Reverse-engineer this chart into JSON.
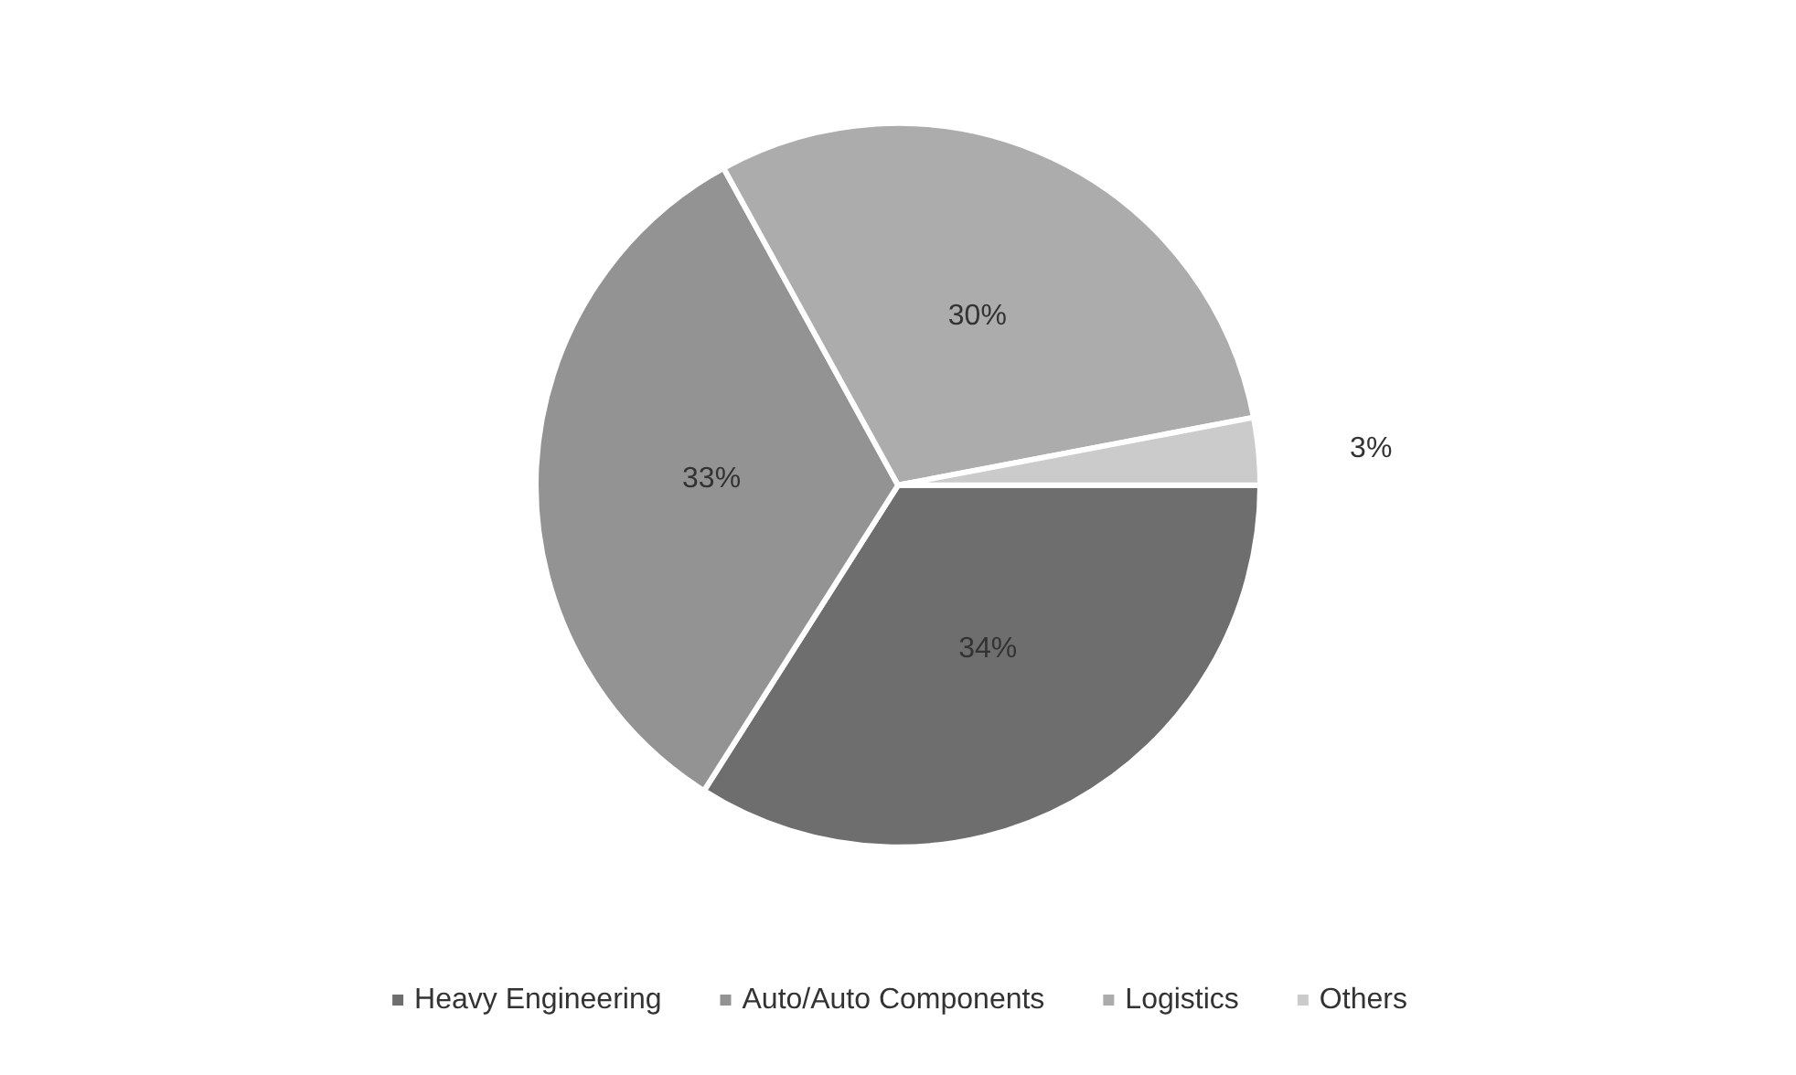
{
  "chart_data": {
    "type": "pie",
    "categories": [
      "Heavy Engineering",
      "Auto/Auto Components",
      "Logistics",
      "Others"
    ],
    "values": [
      34,
      33,
      30,
      3
    ],
    "colors": [
      "#6e6e6e",
      "#939393",
      "#acacac",
      "#cbcbcb"
    ],
    "value_labels": [
      "34%",
      "33%",
      "30%",
      "3%"
    ],
    "legend": "bottom"
  }
}
